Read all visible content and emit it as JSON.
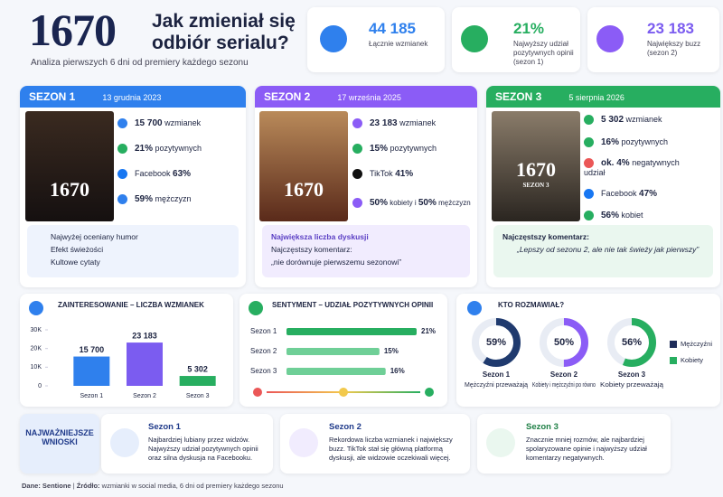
{
  "header": {
    "number": "1670",
    "title": "Jak zmieniał się odbiór serialu?",
    "subtitle": "Analiza pierwszych 6 dni od premiery każdego sezonu"
  },
  "kpis": [
    {
      "value": "44 185",
      "label": "Łącznie wzmianek"
    },
    {
      "value": "21%",
      "label": "Najwyższy udział pozytywnych opinii (sezon 1)"
    },
    {
      "value": "23 183",
      "label": "Największy buzz (sezon 2)"
    }
  ],
  "seasons": [
    {
      "name": "SEZON 1",
      "date": "13 grudnia 2023",
      "poster": "1670",
      "stats": [
        [
          "15 700",
          "wzmianek"
        ],
        [
          "21%",
          "pozytywnych"
        ],
        [
          "Facebook",
          "63%"
        ],
        [
          "59%",
          "mężczyzn"
        ]
      ],
      "features": [
        "Najwyżej oceniany humor",
        "Efekt świeżości",
        "Kultowe cytaty"
      ]
    },
    {
      "name": "SEZON 2",
      "date": "17 września 2025",
      "poster": "1670",
      "stats": [
        [
          "23 183",
          "wzmianek"
        ],
        [
          "15%",
          "pozytywnych"
        ],
        [
          "TikTok",
          "41%"
        ],
        [
          "50%",
          "kobiety i",
          "50%",
          "mężczyzn"
        ]
      ],
      "highlight": "Największa liczba dyskusji",
      "comment_label": "Najczęstszy komentarz:",
      "comment": "„nie dorównuje pierwszemu sezonowi”"
    },
    {
      "name": "SEZON 3",
      "date": "5 sierpnia 2026",
      "poster": "1670",
      "poster_sub": "SEZON 3",
      "stats": [
        [
          "5 302",
          "wzmianek"
        ],
        [
          "16%",
          "pozytywnych"
        ],
        [
          "ok. 4%",
          "negatywnych",
          "udział"
        ],
        [
          "Facebook",
          "47%"
        ],
        [
          "56%",
          "kobiet"
        ]
      ],
      "comment_label": "Najczęstszy komentarz:",
      "comment": "„Lepszy od sezonu 2, ale nie tak świeży jak pierwszy”"
    }
  ],
  "chart_data": [
    {
      "type": "bar",
      "title": "ZAINTERESOWANIE – LICZBA WZMIANEK",
      "categories": [
        "Sezon 1",
        "Sezon 2",
        "Sezon 3"
      ],
      "values": [
        15700,
        23183,
        5302
      ],
      "value_labels": [
        "15 700",
        "23 183",
        "5 302"
      ],
      "colors": [
        "#2f80ed",
        "#7b5cf0",
        "#27ae60"
      ],
      "ylim": [
        0,
        30000
      ],
      "yticks": [
        0,
        {
          "value": 10000,
          "label": "10K"
        },
        {
          "value": 20000,
          "label": "20K"
        },
        {
          "value": 30000,
          "label": "30K"
        }
      ]
    },
    {
      "type": "hbar",
      "title": "SENTYMENT – UDZIAŁ POZYTYWNYCH OPINII",
      "categories": [
        "Sezon 1",
        "Sezon 2",
        "Sezon 3"
      ],
      "values": [
        21,
        15,
        16
      ],
      "value_labels": [
        "21%",
        "15%",
        "16%"
      ],
      "colors": [
        "#27ae60",
        "#6fcf97",
        "#6fcf97"
      ]
    },
    {
      "type": "donut",
      "title": "KTO ROZMAWIAŁ?",
      "categories": [
        "Sezon 1",
        "Sezon 2",
        "Sezon 3"
      ],
      "values": [
        59,
        50,
        56
      ],
      "value_labels": [
        "59%",
        "50%",
        "56%"
      ],
      "descriptions": [
        "Mężczyźni przeważają",
        "Kobiety i mężczyźni po równo",
        "Kobiety przeważają"
      ],
      "colors": [
        "#1f3a6e",
        "#8b5cf6",
        "#27ae60"
      ],
      "series": [
        {
          "name": "Mężczyźni",
          "color": "#1f2d5a"
        },
        {
          "name": "Kobiety",
          "color": "#27ae60"
        }
      ]
    }
  ],
  "insights": {
    "title": "NAJWAŻNIEJSZE WNIOSKI",
    "items": [
      {
        "title": "Sezon 1",
        "text": "Najbardziej lubiany przez widzów. Najwyższy udział pozytywnych opinii oraz silna dyskusja na Facebooku."
      },
      {
        "title": "Sezon 2",
        "text": "Rekordowa liczba wzmianek i największy buzz. TikTok stał się główną platformą dyskusji, ale widzowie oczekiwali więcej."
      },
      {
        "title": "Sezon 3",
        "text": "Znacznie mniej rozmów, ale najbardziej spolaryzowane opinie i najwyższy udział komentarzy negatywnych."
      }
    ]
  },
  "footer": {
    "source_label": "Dane: Sentione",
    "separator": "|",
    "origin_label": "Źródło:",
    "origin": "wzmianki w social media, 6 dni od premiery każdego sezonu"
  }
}
